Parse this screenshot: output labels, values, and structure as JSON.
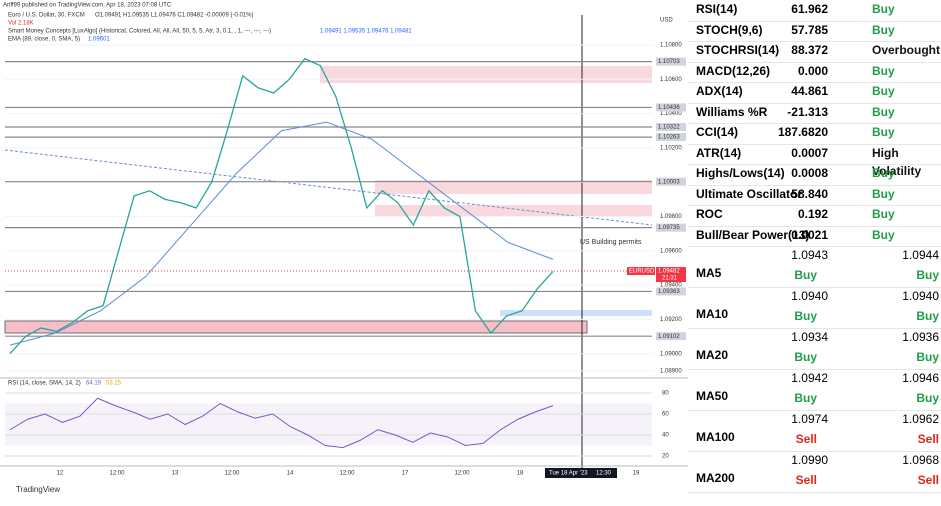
{
  "header": {
    "author": "Ariff99 published on TradingView.com, Apr 18, 2023 07:08 UTC",
    "symbol": "Euro / U.S. Dollar, 30, FXCM",
    "ohlc": "O1.09491 H1.09535 L1.09476 C1.09482 -0.00009 (-0.01%)",
    "volume": "Vol 2.18K",
    "smc": "Smart Money Concepts [LuxAlgo] (Historical, Colored, All, All, All, 50, 5, 5, Atr, 3, 0.1, , 1, ---, ---, ---)",
    "smc_values": "1.09491 1.09535 1.09476 1.09481",
    "ema": "EMA (89, close, 0, SMA, 5)",
    "ema_value": "1.09601"
  },
  "price_chart": {
    "currency": "USD",
    "yticks": [
      {
        "value": 1.108,
        "label": "1.10800"
      },
      {
        "value": 1.106,
        "label": "1.10600"
      },
      {
        "value": 1.104,
        "label": "1.10400"
      },
      {
        "value": 1.102,
        "label": "1.10200"
      },
      {
        "value": 1.1,
        "label": "1.10000"
      },
      {
        "value": 1.098,
        "label": "1.09800"
      },
      {
        "value": 1.096,
        "label": "1.09600"
      },
      {
        "value": 1.094,
        "label": "1.09400"
      },
      {
        "value": 1.092,
        "label": "1.09200"
      },
      {
        "value": 1.09,
        "label": "1.09000"
      },
      {
        "value": 1.089,
        "label": "1.08900"
      }
    ],
    "levels": [
      {
        "value": 1.10703,
        "label": "1.10703"
      },
      {
        "value": 1.10436,
        "label": "1.10436"
      },
      {
        "value": 1.10322,
        "label": "1.10322"
      },
      {
        "value": 1.10263,
        "label": "1.10263"
      },
      {
        "value": 1.10003,
        "label": "1.10003"
      },
      {
        "value": 1.09735,
        "label": "1.09735"
      },
      {
        "value": 1.09363,
        "label": "1.09363"
      },
      {
        "value": 1.09102,
        "label": "1.09102"
      }
    ],
    "last": {
      "symbol": "EURUSD",
      "value": 1.09482,
      "label": "1.09482",
      "countdown": "21:31"
    },
    "annotation": "US Building permits",
    "closes": [
      1.09,
      1.091,
      1.0915,
      1.0913,
      1.0918,
      1.0925,
      1.0928,
      1.096,
      1.0992,
      1.0995,
      1.099,
      1.0988,
      1.0985,
      1.1,
      1.103,
      1.1062,
      1.1055,
      1.1052,
      1.106,
      1.1072,
      1.1068,
      1.105,
      1.102,
      1.0985,
      1.0995,
      1.0988,
      1.0975,
      1.0995,
      1.0985,
      1.098,
      1.0925,
      1.0912,
      1.0922,
      1.0925,
      1.0938,
      1.0948
    ],
    "ema_values": [
      1.0905,
      1.0912,
      1.0925,
      1.0945,
      1.0975,
      1.1005,
      1.103,
      1.1035,
      1.1025,
      1.1005,
      1.0985,
      1.0965,
      1.0955
    ]
  },
  "rsi": {
    "title": "RSI (14, close, SMA, 14, 2)",
    "value": "64.19",
    "sma_value": "53.25",
    "yticks": [
      80,
      60,
      40,
      20
    ],
    "values": [
      45,
      55,
      60,
      52,
      58,
      75,
      68,
      62,
      55,
      60,
      50,
      58,
      70,
      62,
      56,
      60,
      48,
      40,
      30,
      28,
      35,
      45,
      40,
      33,
      42,
      38,
      30,
      32,
      45,
      55,
      62,
      68
    ]
  },
  "time_axis": [
    "12",
    "12:00",
    "13",
    "12:00",
    "14",
    "12:00",
    "17",
    "12:00",
    "18",
    "19"
  ],
  "cursor_label": "Tue 18 Apr '23",
  "cursor_time": "12:30",
  "footer": "TradingView",
  "oscillators": [
    {
      "name": "RSI(14)",
      "value": "61.962",
      "action": "Buy"
    },
    {
      "name": "STOCH(9,6)",
      "value": "57.785",
      "action": "Buy"
    },
    {
      "name": "STOCHRSI(14)",
      "value": "88.372",
      "action": "Overbought"
    },
    {
      "name": "MACD(12,26)",
      "value": "0.000",
      "action": "Buy"
    },
    {
      "name": "ADX(14)",
      "value": "44.861",
      "action": "Buy"
    },
    {
      "name": "Williams %R",
      "value": "-21.313",
      "action": "Buy"
    },
    {
      "name": "CCI(14)",
      "value": "187.6820",
      "action": "Buy"
    },
    {
      "name": "ATR(14)",
      "value": "0.0007",
      "action": "High Volatility"
    },
    {
      "name": "Highs/Lows(14)",
      "value": "0.0008",
      "action": "Buy"
    },
    {
      "name": "Ultimate Oscillator",
      "value": "58.840",
      "action": "Buy"
    },
    {
      "name": "ROC",
      "value": "0.192",
      "action": "Buy"
    },
    {
      "name": "Bull/Bear Power(13)",
      "value": "0.0021",
      "action": "Buy"
    }
  ],
  "moving_averages": [
    {
      "name": "MA5",
      "value1": "1.0943",
      "action1": "Buy",
      "value2": "1.0944",
      "action2": "Buy"
    },
    {
      "name": "MA10",
      "value1": "1.0940",
      "action1": "Buy",
      "value2": "1.0940",
      "action2": "Buy"
    },
    {
      "name": "MA20",
      "value1": "1.0934",
      "action1": "Buy",
      "value2": "1.0936",
      "action2": "Buy"
    },
    {
      "name": "MA50",
      "value1": "1.0942",
      "action1": "Buy",
      "value2": "1.0946",
      "action2": "Buy"
    },
    {
      "name": "MA100",
      "value1": "1.0974",
      "action1": "Sell",
      "value2": "1.0962",
      "action2": "Sell"
    },
    {
      "name": "MA200",
      "value1": "1.0990",
      "action1": "Sell",
      "value2": "1.0968",
      "action2": "Sell"
    }
  ]
}
